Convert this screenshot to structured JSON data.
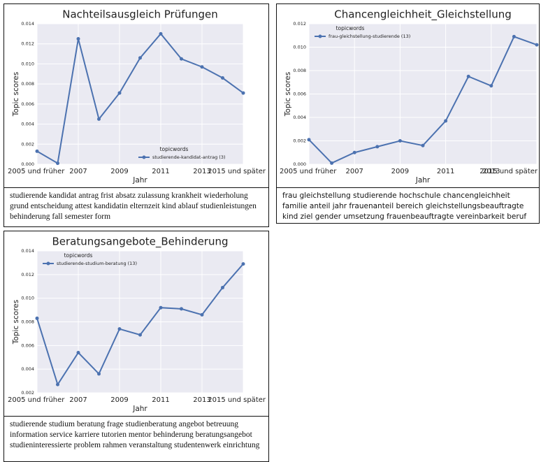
{
  "chart_data": [
    {
      "type": "line",
      "title": "Nachteilsausgleich Prüfungen",
      "xlabel": "Jahr",
      "ylabel": "Topic scores",
      "categories": [
        "2005 und früher",
        null,
        "2007",
        null,
        "2009",
        null,
        "2011",
        null,
        "2013",
        null,
        "2015 und später"
      ],
      "legend_title": "topicwords",
      "legend": "lower right",
      "grid": true,
      "series": [
        {
          "name": "studierende-kandidat-antrag (3)",
          "color": "#4c72b0",
          "values": [
            0.0013,
            0.0001,
            0.0125,
            0.0045,
            0.0071,
            0.0106,
            0.013,
            0.0105,
            0.0097,
            0.0086,
            0.0071
          ]
        }
      ],
      "ylim": [
        0,
        0.014
      ],
      "yticks": [
        {
          "value": 0,
          "label": "0.000"
        },
        {
          "value": 0.002,
          "label": "0.002"
        },
        {
          "value": 0.004,
          "label": "0.004"
        },
        {
          "value": 0.006,
          "label": "0.006"
        },
        {
          "value": 0.008,
          "label": "0.008"
        },
        {
          "value": 0.01,
          "label": "0.010"
        },
        {
          "value": 0.012,
          "label": "0.012"
        },
        {
          "value": 0.014,
          "label": "0.014"
        }
      ],
      "caption": "studierende kandidat antrag frist absatz zulassung krankheit wiederholung grund entscheidung attest kandidatin elternzeit kind ablauf studienleistungen behinderung fall semester form"
    },
    {
      "type": "line",
      "title": "Chancengleichheit_Gleichstellung",
      "xlabel": "Jahr",
      "ylabel": "Topic scores",
      "categories": [
        "2005 und früher",
        null,
        "2007",
        null,
        "2009",
        null,
        "2011",
        null,
        "2013",
        null,
        "2015 und später"
      ],
      "legend_title": "topicwords",
      "legend": "upper left",
      "grid": true,
      "series": [
        {
          "name": "frau-gleichstellung-studierende (13)",
          "color": "#4c72b0",
          "values": [
            0.0021,
            0.0001,
            0.001,
            0.0015,
            0.002,
            0.0016,
            0.0037,
            0.0075,
            0.0067,
            0.0109,
            0.0102
          ]
        }
      ],
      "ylim": [
        0,
        0.012
      ],
      "yticks": [
        {
          "value": 0,
          "label": "0.000"
        },
        {
          "value": 0.002,
          "label": "0.002"
        },
        {
          "value": 0.004,
          "label": "0.004"
        },
        {
          "value": 0.006,
          "label": "0.006"
        },
        {
          "value": 0.008,
          "label": "0.008"
        },
        {
          "value": 0.01,
          "label": "0.010"
        },
        {
          "value": 0.012,
          "label": "0.012"
        }
      ],
      "caption": "frau gleichstellung studierende hochschule chancengleichheit familie anteil jahr frauenanteil bereich gleichstellungsbeauftragte kind ziel gender umsetzung frauenbeauftragte vereinbarkeit beruf rahmen professorin"
    },
    {
      "type": "line",
      "title": "Beratungsangebote_Behinderung",
      "xlabel": "Jahr",
      "ylabel": "Topic scores",
      "categories": [
        "2005 und früher",
        null,
        "2007",
        null,
        "2009",
        null,
        "2011",
        null,
        "2013",
        null,
        "2015 und später"
      ],
      "legend_title": "topicwords",
      "legend": "upper left",
      "grid": true,
      "series": [
        {
          "name": "studierende-studium-beratung (13)",
          "color": "#4c72b0",
          "values": [
            0.0083,
            0.0027,
            0.0054,
            0.0036,
            0.0074,
            0.0069,
            0.0092,
            0.0091,
            0.0086,
            0.0109,
            0.0129
          ]
        }
      ],
      "ylim": [
        0.002,
        0.014
      ],
      "yticks": [
        {
          "value": 0.002,
          "label": "0.002"
        },
        {
          "value": 0.004,
          "label": "0.004"
        },
        {
          "value": 0.006,
          "label": "0.006"
        },
        {
          "value": 0.008,
          "label": "0.008"
        },
        {
          "value": 0.01,
          "label": "0.010"
        },
        {
          "value": 0.012,
          "label": "0.012"
        },
        {
          "value": 0.014,
          "label": "0.014"
        }
      ],
      "caption": "studierende studium beratung frage studienberatung angebot betreuung information service karriere tutorien mentor behinderung beratungsangebot studieninteressierte problem rahmen veranstaltung studentenwerk einrichtung"
    }
  ]
}
